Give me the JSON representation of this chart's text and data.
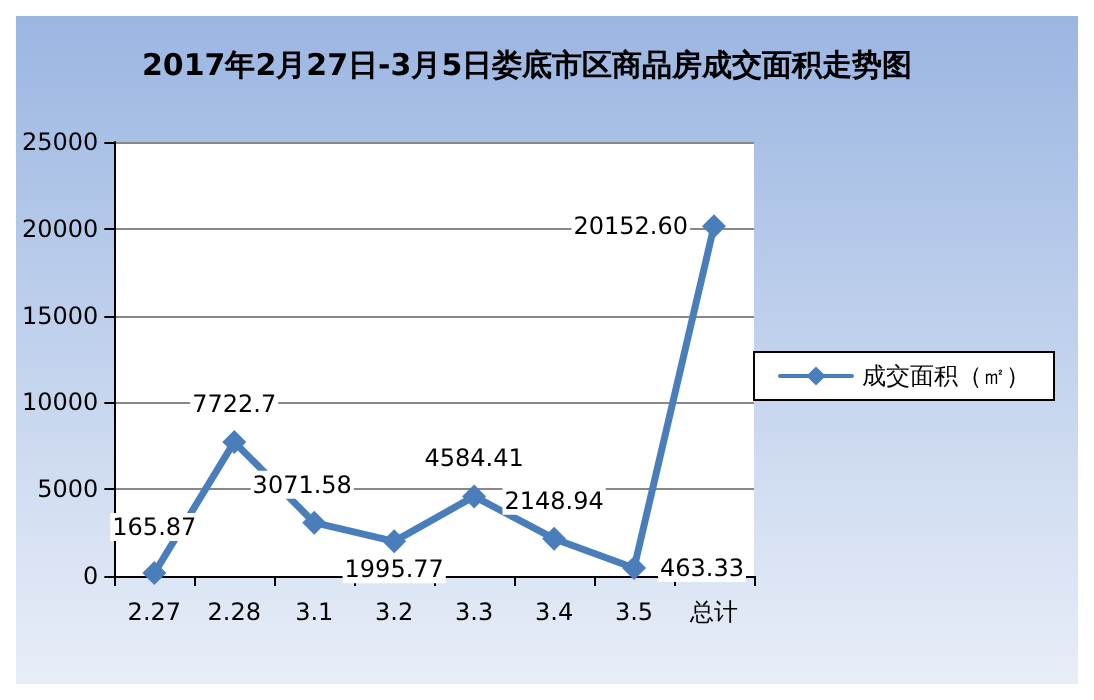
{
  "chart_data": {
    "type": "line",
    "title": "2017年2月27日-3月5日娄底市区商品房成交面积走势图",
    "categories": [
      "2.27",
      "2.28",
      "3.1",
      "3.2",
      "3.3",
      "3.4",
      "3.5",
      "总计"
    ],
    "series": [
      {
        "name": "成交面积（㎡）",
        "color": "#4a7ebb",
        "values": [
          165.87,
          7722.7,
          3071.58,
          1995.77,
          4584.41,
          2148.94,
          463.33,
          20152.6
        ],
        "value_labels": [
          "165.87",
          "7722.7",
          "3071.58",
          "1995.77",
          "4584.41",
          "2148.94",
          "463.33",
          "20152.60"
        ]
      }
    ],
    "ylim": [
      0,
      25000
    ],
    "yticks": [
      0,
      5000,
      10000,
      15000,
      20000,
      25000
    ],
    "grid": "y",
    "legend": "right",
    "marker": "diamond",
    "line_style": "solid"
  }
}
